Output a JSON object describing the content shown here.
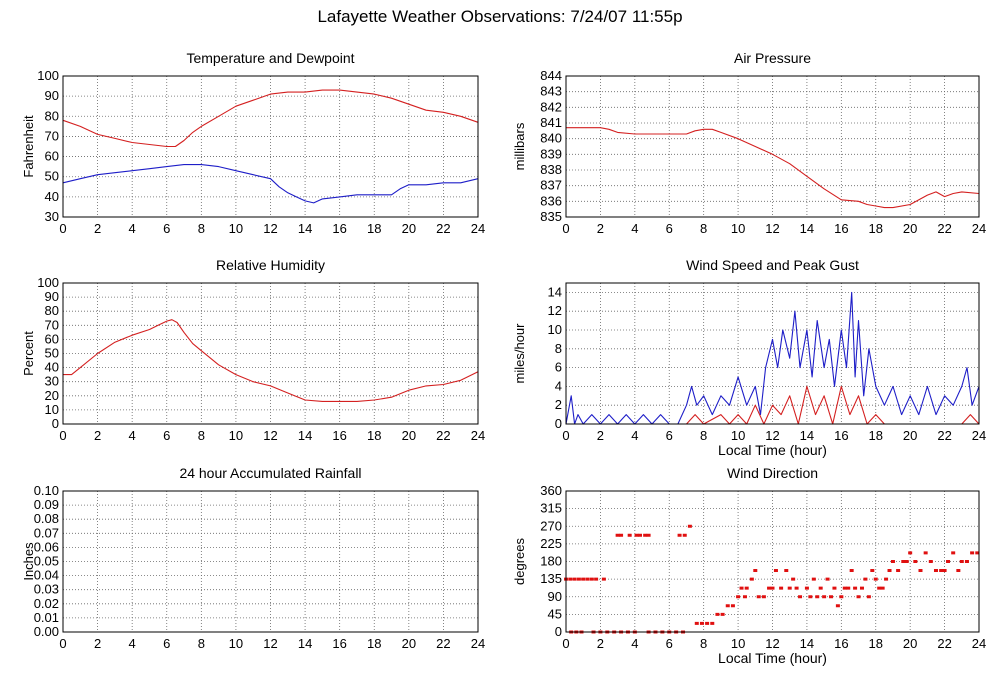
{
  "title": "Lafayette Weather Observations: 7/24/07 11:55p",
  "chart_data": [
    {
      "id": "temp",
      "type": "line",
      "title": "Temperature and Dewpoint",
      "xlabel": "",
      "ylabel": "Fahrenheit",
      "xlim": [
        0,
        24
      ],
      "ylim": [
        30,
        100
      ],
      "xticks": [
        0,
        2,
        4,
        6,
        8,
        10,
        12,
        14,
        16,
        18,
        20,
        22,
        24
      ],
      "yticks": [
        30,
        40,
        50,
        60,
        70,
        80,
        90,
        100
      ],
      "grid": true,
      "series": [
        {
          "color": "#d42020",
          "x": [
            0,
            1,
            2,
            3,
            4,
            5,
            6,
            6.5,
            7,
            7.5,
            8,
            9,
            10,
            11,
            12,
            13,
            14,
            15,
            16,
            17,
            18,
            19,
            20,
            21,
            22,
            23,
            24
          ],
          "y": [
            78,
            75,
            71,
            69,
            67,
            66,
            65,
            65,
            68,
            72,
            75,
            80,
            85,
            88,
            91,
            92,
            92,
            93,
            93,
            92,
            91,
            89,
            86,
            83,
            82,
            80,
            77
          ]
        },
        {
          "color": "#1e1ec8",
          "x": [
            0,
            1,
            2,
            3,
            4,
            5,
            6,
            7,
            8,
            9,
            10,
            11,
            12,
            12.5,
            13,
            13.5,
            14,
            14.5,
            15,
            16,
            17,
            18,
            19,
            19.5,
            20,
            21,
            22,
            23,
            24
          ],
          "y": [
            47,
            49,
            51,
            52,
            53,
            54,
            55,
            56,
            56,
            55,
            53,
            51,
            49,
            45,
            42,
            40,
            38,
            37,
            39,
            40,
            41,
            41,
            41,
            44,
            46,
            46,
            47,
            47,
            49
          ]
        }
      ]
    },
    {
      "id": "pressure",
      "type": "line",
      "title": "Air Pressure",
      "xlabel": "",
      "ylabel": "millibars",
      "xlim": [
        0,
        24
      ],
      "ylim": [
        835,
        844
      ],
      "xticks": [
        0,
        2,
        4,
        6,
        8,
        10,
        12,
        14,
        16,
        18,
        20,
        22,
        24
      ],
      "yticks": [
        835,
        836,
        837,
        838,
        839,
        840,
        841,
        842,
        843,
        844
      ],
      "grid": true,
      "series": [
        {
          "color": "#d42020",
          "x": [
            0,
            1,
            2,
            2.5,
            3,
            4,
            5,
            6,
            7,
            7.5,
            8,
            8.5,
            9,
            10,
            11,
            12,
            13,
            14,
            15,
            16,
            17,
            17.5,
            18,
            18.5,
            19,
            20,
            21,
            21.5,
            22,
            22.5,
            23,
            24
          ],
          "y": [
            840.7,
            840.7,
            840.7,
            840.6,
            840.4,
            840.3,
            840.3,
            840.3,
            840.3,
            840.5,
            840.6,
            840.6,
            840.4,
            840.0,
            839.5,
            839.0,
            838.4,
            837.6,
            836.8,
            836.1,
            836.0,
            835.8,
            835.7,
            835.6,
            835.6,
            835.8,
            836.4,
            836.6,
            836.3,
            836.5,
            836.6,
            836.5
          ]
        }
      ]
    },
    {
      "id": "humidity",
      "type": "line",
      "title": "Relative Humidity",
      "xlabel": "",
      "ylabel": "Percent",
      "xlim": [
        0,
        24
      ],
      "ylim": [
        0,
        100
      ],
      "xticks": [
        0,
        2,
        4,
        6,
        8,
        10,
        12,
        14,
        16,
        18,
        20,
        22,
        24
      ],
      "yticks": [
        0,
        10,
        20,
        30,
        40,
        50,
        60,
        70,
        80,
        90,
        100
      ],
      "grid": true,
      "series": [
        {
          "color": "#d42020",
          "x": [
            0,
            0.5,
            1,
            2,
            3,
            4,
            5,
            5.5,
            6,
            6.3,
            6.6,
            7,
            7.5,
            8,
            9,
            10,
            11,
            12,
            13,
            14,
            15,
            16,
            17,
            18,
            19,
            20,
            21,
            22,
            23,
            24
          ],
          "y": [
            35,
            35,
            40,
            50,
            58,
            63,
            67,
            70,
            73,
            74,
            72,
            65,
            57,
            52,
            42,
            35,
            30,
            27,
            22,
            17,
            16,
            16,
            16,
            17,
            19,
            24,
            27,
            28,
            31,
            37
          ]
        }
      ]
    },
    {
      "id": "wind",
      "type": "line",
      "title": "Wind Speed and Peak Gust",
      "xlabel": "Local Time (hour)",
      "ylabel": "miles/hour",
      "xlim": [
        0,
        24
      ],
      "ylim": [
        0,
        15
      ],
      "xticks": [
        0,
        2,
        4,
        6,
        8,
        10,
        12,
        14,
        16,
        18,
        20,
        22,
        24
      ],
      "yticks": [
        0,
        2,
        4,
        6,
        8,
        10,
        12,
        14
      ],
      "grid": true,
      "series": [
        {
          "color": "#1e1ec8",
          "x": [
            0,
            0.3,
            0.5,
            0.7,
            1,
            1.5,
            2,
            2.5,
            3,
            3.5,
            4,
            4.5,
            5,
            5.5,
            6,
            6.5,
            7,
            7.3,
            7.6,
            8,
            8.5,
            9,
            9.5,
            10,
            10.5,
            11,
            11.3,
            11.6,
            12,
            12.3,
            12.6,
            13,
            13.3,
            13.6,
            14,
            14.3,
            14.6,
            15,
            15.3,
            15.6,
            16,
            16.3,
            16.6,
            16.8,
            17,
            17.3,
            17.6,
            18,
            18.5,
            19,
            19.5,
            20,
            20.5,
            21,
            21.5,
            22,
            22.5,
            23,
            23.3,
            23.6,
            24
          ],
          "y": [
            0,
            3,
            0,
            1,
            0,
            1,
            0,
            1,
            0,
            1,
            0,
            1,
            0,
            1,
            0,
            0,
            2,
            4,
            2,
            3,
            1,
            3,
            2,
            5,
            2,
            4,
            1,
            6,
            9,
            6,
            10,
            7,
            12,
            6,
            10,
            5,
            11,
            6,
            9,
            4,
            10,
            6,
            14,
            5,
            11,
            3,
            8,
            4,
            2,
            4,
            1,
            3,
            1,
            4,
            1,
            3,
            2,
            4,
            6,
            2,
            4
          ]
        },
        {
          "color": "#d42020",
          "x": [
            0,
            6.5,
            7,
            7.5,
            8,
            9,
            9.5,
            10,
            10.5,
            11,
            11.5,
            12,
            12.5,
            13,
            13.5,
            14,
            14.5,
            15,
            15.5,
            16,
            16.5,
            17,
            17.5,
            18,
            18.5,
            19,
            20,
            21,
            22,
            23,
            23.5,
            24
          ],
          "y": [
            0,
            0,
            0,
            1,
            0,
            1,
            0,
            1,
            0,
            2,
            0,
            2,
            1,
            3,
            0,
            4,
            1,
            3,
            0,
            4,
            1,
            3,
            0,
            1,
            0,
            0,
            0,
            0,
            0,
            0,
            1,
            0
          ]
        }
      ]
    },
    {
      "id": "rain",
      "type": "line",
      "title": "24 hour Accumulated Rainfall",
      "xlabel": "",
      "ylabel": "Inches",
      "xlim": [
        0,
        24
      ],
      "ylim": [
        0,
        0.1
      ],
      "xticks": [
        0,
        2,
        4,
        6,
        8,
        10,
        12,
        14,
        16,
        18,
        20,
        22,
        24
      ],
      "yticks": [
        "0.00",
        "0.01",
        "0.02",
        "0.03",
        "0.04",
        "0.05",
        "0.06",
        "0.07",
        "0.08",
        "0.09",
        "0.10"
      ],
      "grid": true,
      "series": [
        {
          "color": "#d42020",
          "x": [
            0,
            24
          ],
          "y": [
            0,
            0
          ]
        }
      ]
    },
    {
      "id": "direction",
      "type": "scatter",
      "title": "Wind Direction",
      "xlabel": "Local Time (hour)",
      "ylabel": "degrees",
      "xlim": [
        0,
        24
      ],
      "ylim": [
        0,
        360
      ],
      "xticks": [
        0,
        2,
        4,
        6,
        8,
        10,
        12,
        14,
        16,
        18,
        20,
        22,
        24
      ],
      "yticks": [
        0,
        45,
        90,
        135,
        180,
        225,
        270,
        315,
        360
      ],
      "grid": true,
      "series": [
        {
          "color": "#e01010",
          "points": [
            [
              0,
              135
            ],
            [
              0.25,
              135
            ],
            [
              0.5,
              135
            ],
            [
              0.75,
              135
            ],
            [
              1,
              135
            ],
            [
              1.25,
              135
            ],
            [
              1.5,
              135
            ],
            [
              1.75,
              135
            ],
            [
              2.2,
              135
            ],
            [
              0.3,
              0
            ],
            [
              0.6,
              0
            ],
            [
              0.9,
              0
            ],
            [
              1.6,
              0
            ],
            [
              2,
              0
            ],
            [
              2.4,
              0
            ],
            [
              2.8,
              0
            ],
            [
              3.2,
              0
            ],
            [
              3.6,
              0
            ],
            [
              4,
              0
            ],
            [
              4.8,
              0
            ],
            [
              5.2,
              0
            ],
            [
              5.6,
              0
            ],
            [
              6,
              0
            ],
            [
              6.4,
              0
            ],
            [
              6.8,
              0
            ],
            [
              3,
              247
            ],
            [
              3.2,
              247
            ],
            [
              3.7,
              247
            ],
            [
              4.1,
              247
            ],
            [
              4.3,
              247
            ],
            [
              4.6,
              247
            ],
            [
              4.8,
              247
            ],
            [
              6.6,
              247
            ],
            [
              6.9,
              247
            ],
            [
              7.2,
              270
            ],
            [
              7.6,
              22
            ],
            [
              7.9,
              22
            ],
            [
              8.2,
              22
            ],
            [
              8.5,
              22
            ],
            [
              8.8,
              45
            ],
            [
              9.1,
              45
            ],
            [
              9.4,
              67
            ],
            [
              9.7,
              67
            ],
            [
              10,
              90
            ],
            [
              10.2,
              112
            ],
            [
              10.5,
              112
            ],
            [
              10.8,
              135
            ],
            [
              11,
              157
            ],
            [
              10.4,
              90
            ],
            [
              11.2,
              90
            ],
            [
              11.5,
              90
            ],
            [
              11.8,
              112
            ],
            [
              12,
              112
            ],
            [
              12.2,
              157
            ],
            [
              12.5,
              112
            ],
            [
              12.8,
              157
            ],
            [
              13.2,
              135
            ],
            [
              13.4,
              112
            ],
            [
              13.6,
              90
            ],
            [
              13,
              112
            ],
            [
              14,
              112
            ],
            [
              14.2,
              90
            ],
            [
              14.4,
              135
            ],
            [
              14.6,
              90
            ],
            [
              14.8,
              112
            ],
            [
              15,
              90
            ],
            [
              15.2,
              135
            ],
            [
              15.4,
              90
            ],
            [
              15.6,
              112
            ],
            [
              15.8,
              67
            ],
            [
              16,
              90
            ],
            [
              16.2,
              112
            ],
            [
              16.4,
              112
            ],
            [
              16.6,
              157
            ],
            [
              16.8,
              112
            ],
            [
              17,
              90
            ],
            [
              17.2,
              112
            ],
            [
              17.4,
              135
            ],
            [
              17.6,
              90
            ],
            [
              17.8,
              157
            ],
            [
              18,
              135
            ],
            [
              18.2,
              112
            ],
            [
              18.4,
              112
            ],
            [
              18.6,
              135
            ],
            [
              18.8,
              157
            ],
            [
              19,
              180
            ],
            [
              19.3,
              157
            ],
            [
              19.6,
              180
            ],
            [
              19.8,
              180
            ],
            [
              20,
              202
            ],
            [
              20.3,
              180
            ],
            [
              20.6,
              157
            ],
            [
              20.9,
              202
            ],
            [
              21.2,
              180
            ],
            [
              21.5,
              157
            ],
            [
              21.8,
              157
            ],
            [
              22,
              157
            ],
            [
              22.2,
              180
            ],
            [
              22.5,
              202
            ],
            [
              22.8,
              157
            ],
            [
              23,
              180
            ],
            [
              23.3,
              180
            ],
            [
              23.6,
              202
            ],
            [
              23.9,
              202
            ]
          ]
        }
      ]
    }
  ]
}
